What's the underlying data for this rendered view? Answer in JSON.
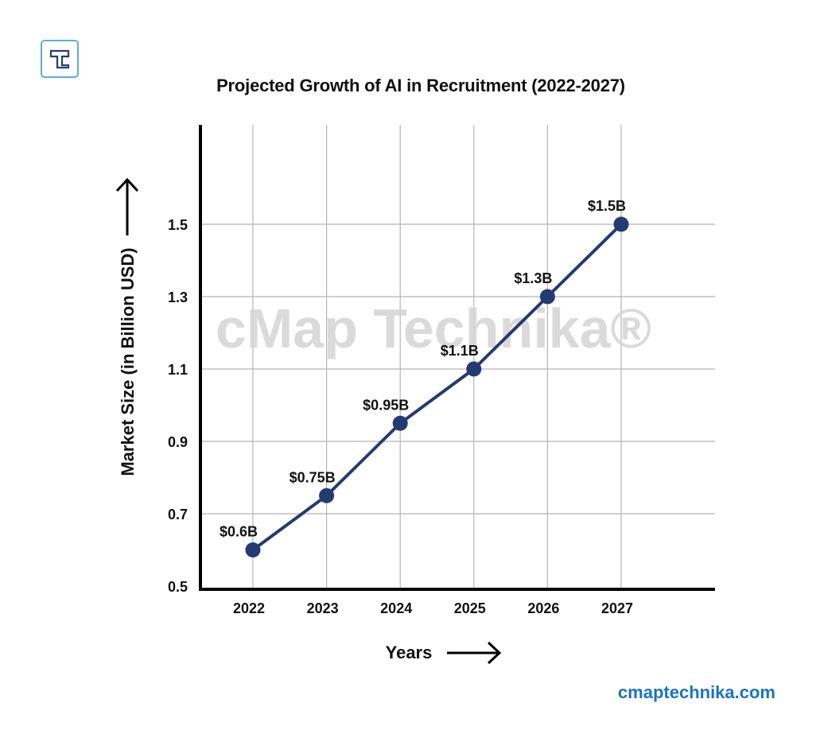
{
  "logo": {
    "icon": "T-logo-icon",
    "border_color": "#5aaed6",
    "glyph_color": "#2a3a78"
  },
  "footer": {
    "domain": "cmaptechnika.com",
    "color": "#1a73c2"
  },
  "watermark": {
    "text": "cMap Technika®",
    "color": "#d4d4d4"
  },
  "chart_data": {
    "type": "line",
    "title": "Projected Growth of AI in Recruitment (2022-2027)",
    "xlabel": "Years",
    "ylabel": "Market Size (in Billion USD)",
    "categories": [
      "2022",
      "2023",
      "2024",
      "2025",
      "2026",
      "2027"
    ],
    "series": [
      {
        "name": "Market Size",
        "values": [
          0.6,
          0.75,
          0.95,
          1.1,
          1.3,
          1.5
        ],
        "labels": [
          "$0.6B",
          "$0.75B",
          "$0.95B",
          "$1.1B",
          "$1.3B",
          "$1.5B"
        ],
        "color": "#243a72"
      }
    ],
    "yticks": [
      0.5,
      0.7,
      0.9,
      1.1,
      1.3,
      1.5
    ],
    "ytick_labels": [
      "0.5",
      "0.7",
      "0.9",
      "1.1",
      "1.3",
      "1.5"
    ],
    "ylim": [
      0.5,
      1.8
    ],
    "grid": true,
    "legend": "none"
  }
}
